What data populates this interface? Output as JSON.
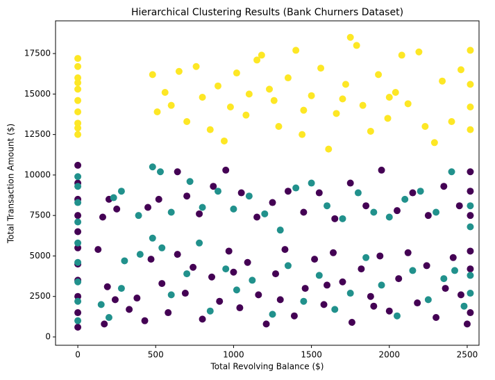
{
  "chart_data": {
    "type": "scatter",
    "title": "Hierarchical Clustering Results (Bank Churners Dataset)",
    "x_label": "Total Revolving Balance ($)",
    "y_label": "Total Transaction Amount ($)",
    "xlim": [
      -143,
      2576
    ],
    "ylim": [
      -515,
      19520
    ],
    "xticks": [
      0,
      500,
      1000,
      1500,
      2000,
      2500
    ],
    "yticks": [
      0,
      2500,
      5000,
      7500,
      10000,
      12500,
      15000,
      17500
    ],
    "series": [
      {
        "color": "#440154",
        "x": [
          0,
          0,
          0,
          0,
          0,
          0,
          0,
          0,
          0,
          0,
          0,
          160,
          200,
          250,
          450,
          520,
          640,
          700,
          780,
          870,
          950,
          1050,
          1150,
          1250,
          1350,
          1450,
          1550,
          1650,
          1750,
          1850,
          1950,
          2050,
          2150,
          2250,
          2350,
          2450,
          2520,
          2520,
          2520,
          130,
          170,
          190,
          240,
          330,
          380,
          430,
          470,
          540,
          580,
          640,
          690,
          740,
          800,
          860,
          910,
          970,
          1040,
          1090,
          1160,
          1210,
          1270,
          1330,
          1390,
          1460,
          1520,
          1580,
          1640,
          1700,
          1760,
          1820,
          1880,
          1940,
          2000,
          2060,
          2120,
          2180,
          2240,
          2300,
          2360,
          2410,
          2460,
          2500,
          2520,
          2520,
          2520,
          1000,
          1300,
          1600,
          1900
        ],
        "values": [
          600,
          1500,
          2500,
          3500,
          4500,
          5500,
          6500,
          7500,
          8500,
          9500,
          10600,
          7400,
          8500,
          7900,
          8000,
          8500,
          10200,
          8700,
          7600,
          9300,
          10300,
          8900,
          7400,
          8300,
          9000,
          7700,
          8900,
          7300,
          9500,
          8100,
          10300,
          7800,
          8900,
          7500,
          9300,
          8100,
          10200,
          9000,
          7500,
          5400,
          800,
          3100,
          2300,
          1700,
          2400,
          1000,
          4800,
          3300,
          1500,
          5100,
          2700,
          4300,
          1100,
          3700,
          2200,
          5300,
          1800,
          4600,
          2600,
          800,
          3900,
          5400,
          1300,
          3000,
          4800,
          2000,
          5200,
          3400,
          900,
          4200,
          2500,
          5000,
          1600,
          3600,
          5200,
          2100,
          4400,
          1200,
          3000,
          4900,
          2600,
          800,
          4200,
          1500,
          5300,
          4000,
          2300,
          3200,
          1900
        ]
      },
      {
        "color": "#21918c",
        "x": [
          0,
          0,
          0,
          0,
          0,
          0,
          0,
          0,
          0,
          230,
          280,
          390,
          480,
          530,
          600,
          720,
          800,
          900,
          1000,
          1100,
          1200,
          1300,
          1400,
          1500,
          1600,
          1700,
          1800,
          1900,
          2000,
          2100,
          2200,
          2300,
          2400,
          2520,
          2520,
          150,
          200,
          280,
          300,
          400,
          480,
          540,
          600,
          700,
          780,
          850,
          950,
          1020,
          1120,
          1250,
          1350,
          1450,
          1550,
          1650,
          1750,
          1850,
          1950,
          2050,
          2150,
          2250,
          2350,
          2420,
          2480,
          2520,
          2520
        ],
        "values": [
          1000,
          2200,
          3400,
          4600,
          5800,
          7100,
          8300,
          9300,
          9900,
          8600,
          9000,
          7500,
          10500,
          10200,
          7700,
          9600,
          8000,
          9000,
          7900,
          8700,
          7600,
          6600,
          9200,
          9500,
          8100,
          7300,
          8900,
          7700,
          7400,
          8500,
          9000,
          7700,
          10200,
          6800,
          8100,
          2000,
          1200,
          3000,
          4700,
          5100,
          6100,
          5500,
          2600,
          3900,
          5800,
          1600,
          4200,
          2900,
          3500,
          1400,
          4400,
          2200,
          3800,
          1700,
          2700,
          4900,
          3200,
          1300,
          4100,
          2300,
          3600,
          4100,
          1900,
          2700,
          3800
        ]
      },
      {
        "color": "#fde725",
        "x": [
          0,
          0,
          0,
          0,
          0,
          0,
          0,
          0,
          0,
          0,
          480,
          510,
          560,
          600,
          650,
          700,
          760,
          800,
          850,
          900,
          940,
          980,
          1020,
          1080,
          1150,
          1180,
          1230,
          1290,
          1350,
          1400,
          1440,
          1500,
          1560,
          1610,
          1660,
          1720,
          1750,
          1790,
          1830,
          1880,
          1930,
          1990,
          2040,
          2080,
          2120,
          2190,
          2230,
          2290,
          2340,
          2400,
          2460,
          2520,
          2520,
          2520,
          2520,
          1260,
          1100,
          1700,
          1450,
          2000
        ],
        "values": [
          12500,
          13200,
          13900,
          14600,
          15300,
          16000,
          16700,
          17200,
          12900,
          15700,
          16200,
          13900,
          15100,
          14300,
          16400,
          13300,
          16700,
          14800,
          12800,
          15500,
          12100,
          14200,
          16300,
          13700,
          17100,
          17400,
          15300,
          13000,
          16000,
          17700,
          12500,
          14900,
          16600,
          11600,
          13800,
          15600,
          18500,
          18000,
          14300,
          12700,
          16200,
          13500,
          15100,
          17400,
          14400,
          17600,
          13000,
          12000,
          15800,
          13300,
          16500,
          17700,
          14200,
          12800,
          15600,
          14600,
          15000,
          14700,
          14000,
          14800
        ]
      }
    ]
  }
}
